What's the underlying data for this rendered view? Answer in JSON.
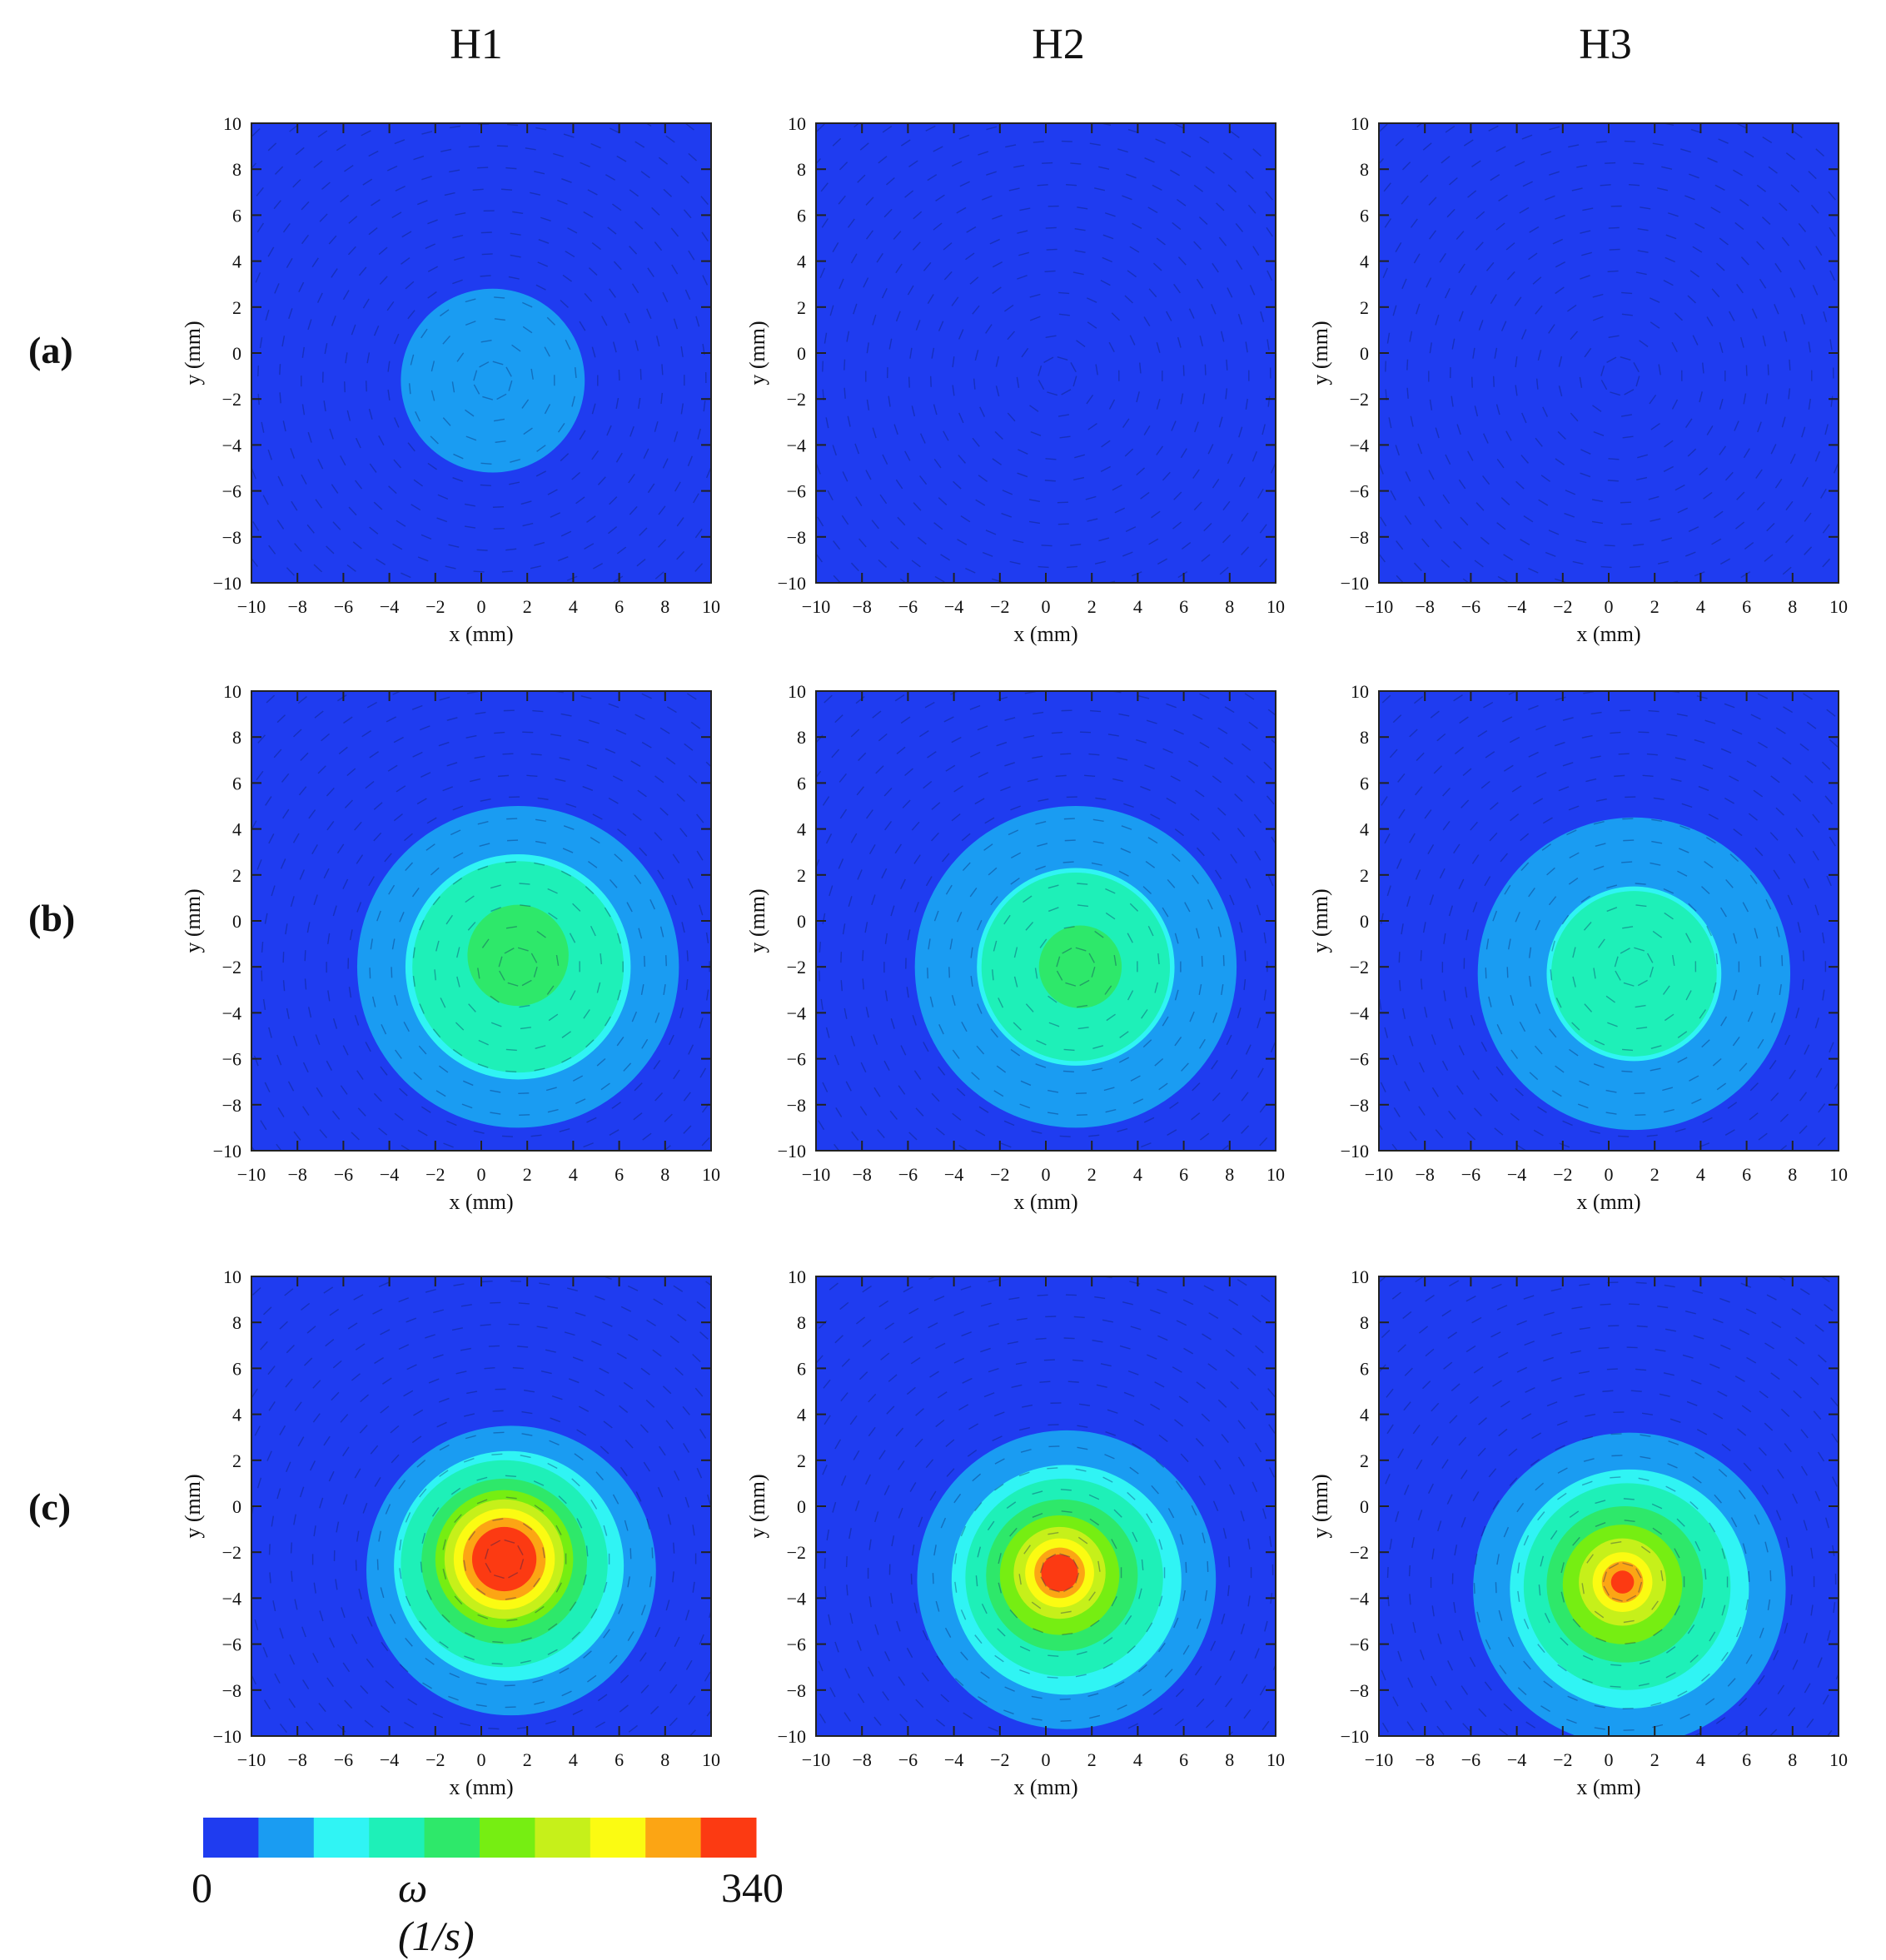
{
  "columns": [
    "H1",
    "H2",
    "H3"
  ],
  "rows": [
    "(a)",
    "(b)",
    "(c)"
  ],
  "colorbar": {
    "min_label": "0",
    "max_label": "340",
    "quantity_label": "ω (1/s)",
    "min": 0,
    "max": 340,
    "colors": [
      "#1f3cf0",
      "#1a9cf2",
      "#30f4f4",
      "#1ef0b8",
      "#2ee86a",
      "#76ee12",
      "#c6f01a",
      "#fbfb12",
      "#fca514",
      "#fc3a12"
    ]
  },
  "chart_data": [
    {
      "type": "heatmap",
      "row": "(a)",
      "column": "H1",
      "xlabel": "x (mm)",
      "ylabel": "y (mm)",
      "xlim": [
        -10,
        10
      ],
      "ylim": [
        -10,
        10
      ],
      "xticks": [
        "−10",
        "−8",
        "−6",
        "−4",
        "−2",
        "0",
        "2",
        "4",
        "6",
        "8",
        "10"
      ],
      "yticks": [
        "−10",
        "−8",
        "−6",
        "−4",
        "−2",
        "0",
        "2",
        "4",
        "6",
        "8",
        "10"
      ],
      "vortex_center": [
        0.5,
        -1.2
      ],
      "contours": [
        {
          "radius": 4.0,
          "level": 1
        }
      ]
    },
    {
      "type": "heatmap",
      "row": "(a)",
      "column": "H2",
      "xlabel": "x (mm)",
      "ylabel": "y (mm)",
      "xlim": [
        -10,
        10
      ],
      "ylim": [
        -10,
        10
      ],
      "xticks": [
        "−10",
        "−8",
        "−6",
        "−4",
        "−2",
        "0",
        "2",
        "4",
        "6",
        "8",
        "10"
      ],
      "yticks": [
        "−10",
        "−8",
        "−6",
        "−4",
        "−2",
        "0",
        "2",
        "4",
        "6",
        "8",
        "10"
      ],
      "vortex_center": [
        0.5,
        -1.0
      ],
      "contours": []
    },
    {
      "type": "heatmap",
      "row": "(a)",
      "column": "H3",
      "xlabel": "x (mm)",
      "ylabel": "y (mm)",
      "xlim": [
        -10,
        10
      ],
      "ylim": [
        -10,
        10
      ],
      "xticks": [
        "−10",
        "−8",
        "−6",
        "−4",
        "−2",
        "0",
        "2",
        "4",
        "6",
        "8",
        "10"
      ],
      "yticks": [
        "−10",
        "−8",
        "−6",
        "−4",
        "−2",
        "0",
        "2",
        "4",
        "6",
        "8",
        "10"
      ],
      "vortex_center": [
        0.5,
        -1.0
      ],
      "contours": []
    },
    {
      "type": "heatmap",
      "row": "(b)",
      "column": "H1",
      "xlabel": "x (mm)",
      "ylabel": "y (mm)",
      "xlim": [
        -10,
        10
      ],
      "ylim": [
        -10,
        10
      ],
      "xticks": [
        "−10",
        "−8",
        "−6",
        "−4",
        "−2",
        "0",
        "2",
        "4",
        "6",
        "8",
        "10"
      ],
      "yticks": [
        "−10",
        "−8",
        "−6",
        "−4",
        "−2",
        "0",
        "2",
        "4",
        "6",
        "8",
        "10"
      ],
      "vortex_center": [
        1.6,
        -2.0
      ],
      "contours": [
        {
          "radius": 7.0,
          "level": 1,
          "cx": 1.6,
          "cy": -2.0
        },
        {
          "radius": 4.9,
          "level": 2,
          "cx": 1.6,
          "cy": -2.0
        },
        {
          "radius": 4.6,
          "level": 3,
          "cx": 1.6,
          "cy": -2.0
        },
        {
          "radius": 2.2,
          "level": 4,
          "cx": 1.6,
          "cy": -1.5
        }
      ]
    },
    {
      "type": "heatmap",
      "row": "(b)",
      "column": "H2",
      "xlabel": "x (mm)",
      "ylabel": "y (mm)",
      "xlim": [
        -10,
        10
      ],
      "ylim": [
        -10,
        10
      ],
      "xticks": [
        "−10",
        "−8",
        "−6",
        "−4",
        "−2",
        "0",
        "2",
        "4",
        "6",
        "8",
        "10"
      ],
      "yticks": [
        "−10",
        "−8",
        "−6",
        "−4",
        "−2",
        "0",
        "2",
        "4",
        "6",
        "8",
        "10"
      ],
      "vortex_center": [
        1.3,
        -2.0
      ],
      "contours": [
        {
          "radius": 7.0,
          "level": 1,
          "cx": 1.3,
          "cy": -2.0
        },
        {
          "radius": 4.3,
          "level": 2,
          "cx": 1.3,
          "cy": -2.0
        },
        {
          "radius": 4.1,
          "level": 3,
          "cx": 1.3,
          "cy": -2.0
        },
        {
          "radius": 1.8,
          "level": 4,
          "cx": 1.5,
          "cy": -2.0
        }
      ]
    },
    {
      "type": "heatmap",
      "row": "(b)",
      "column": "H3",
      "xlabel": "x (mm)",
      "ylabel": "y (mm)",
      "xlim": [
        -10,
        10
      ],
      "ylim": [
        -10,
        10
      ],
      "xticks": [
        "−10",
        "−8",
        "−6",
        "−4",
        "−2",
        "0",
        "2",
        "4",
        "6",
        "8",
        "10"
      ],
      "yticks": [
        "−10",
        "−8",
        "−6",
        "−4",
        "−2",
        "0",
        "2",
        "4",
        "6",
        "8",
        "10"
      ],
      "vortex_center": [
        1.1,
        -2.0
      ],
      "contours": [
        {
          "radius": 6.8,
          "level": 1,
          "cx": 1.1,
          "cy": -2.3
        },
        {
          "radius": 3.8,
          "level": 2,
          "cx": 1.1,
          "cy": -2.3
        },
        {
          "radius": 3.6,
          "level": 3,
          "cx": 1.1,
          "cy": -2.3
        }
      ]
    },
    {
      "type": "heatmap",
      "row": "(c)",
      "column": "H1",
      "xlabel": "x (mm)",
      "ylabel": "y (mm)",
      "xlim": [
        -10,
        10
      ],
      "ylim": [
        -10,
        10
      ],
      "xticks": [
        "−10",
        "−8",
        "−6",
        "−4",
        "−2",
        "0",
        "2",
        "4",
        "6",
        "8",
        "10"
      ],
      "yticks": [
        "−10",
        "−8",
        "−6",
        "−4",
        "−2",
        "0",
        "2",
        "4",
        "6",
        "8",
        "10"
      ],
      "vortex_center": [
        1.0,
        -2.3
      ],
      "contours": [
        {
          "radius": 6.3,
          "level": 1,
          "cx": 1.3,
          "cy": -2.8
        },
        {
          "radius": 5.0,
          "level": 2,
          "cx": 1.2,
          "cy": -2.6
        },
        {
          "radius": 4.5,
          "level": 3,
          "cx": 1.0,
          "cy": -2.5
        },
        {
          "radius": 3.6,
          "level": 4,
          "cx": 1.0,
          "cy": -2.4
        },
        {
          "radius": 3.0,
          "level": 5,
          "cx": 1.0,
          "cy": -2.3
        },
        {
          "radius": 2.6,
          "level": 6,
          "cx": 1.0,
          "cy": -2.3
        },
        {
          "radius": 2.2,
          "level": 7,
          "cx": 1.0,
          "cy": -2.3
        },
        {
          "radius": 1.8,
          "level": 8,
          "cx": 1.0,
          "cy": -2.3
        },
        {
          "radius": 1.4,
          "level": 9,
          "cx": 1.0,
          "cy": -2.3
        }
      ]
    },
    {
      "type": "heatmap",
      "row": "(c)",
      "column": "H2",
      "xlabel": "x (mm)",
      "ylabel": "y (mm)",
      "xlim": [
        -10,
        10
      ],
      "ylim": [
        -10,
        10
      ],
      "xticks": [
        "−10",
        "−8",
        "−6",
        "−4",
        "−2",
        "0",
        "2",
        "4",
        "6",
        "8",
        "10"
      ],
      "yticks": [
        "−10",
        "−8",
        "−6",
        "−4",
        "−2",
        "0",
        "2",
        "4",
        "6",
        "8",
        "10"
      ],
      "vortex_center": [
        0.6,
        -2.9
      ],
      "contours": [
        {
          "radius": 6.5,
          "level": 1,
          "cx": 0.9,
          "cy": -3.2
        },
        {
          "radius": 5.0,
          "level": 2,
          "cx": 0.9,
          "cy": -3.2
        },
        {
          "radius": 4.3,
          "level": 3,
          "cx": 0.8,
          "cy": -3.1
        },
        {
          "radius": 3.3,
          "level": 4,
          "cx": 0.7,
          "cy": -3.0
        },
        {
          "radius": 2.6,
          "level": 5,
          "cx": 0.6,
          "cy": -3.0
        },
        {
          "radius": 2.0,
          "level": 6,
          "cx": 0.6,
          "cy": -2.9
        },
        {
          "radius": 1.5,
          "level": 7,
          "cx": 0.6,
          "cy": -2.9
        },
        {
          "radius": 1.1,
          "level": 8,
          "cx": 0.6,
          "cy": -2.9
        },
        {
          "radius": 0.8,
          "level": 9,
          "cx": 0.6,
          "cy": -2.9
        }
      ]
    },
    {
      "type": "heatmap",
      "row": "(c)",
      "column": "H3",
      "xlabel": "x (mm)",
      "ylabel": "y (mm)",
      "xlim": [
        -10,
        10
      ],
      "ylim": [
        -10,
        10
      ],
      "xticks": [
        "−10",
        "−8",
        "−6",
        "−4",
        "−2",
        "0",
        "2",
        "4",
        "6",
        "8",
        "10"
      ],
      "yticks": [
        "−10",
        "−8",
        "−6",
        "−4",
        "−2",
        "0",
        "2",
        "4",
        "6",
        "8",
        "10"
      ],
      "vortex_center": [
        0.6,
        -3.3
      ],
      "contours": [
        {
          "radius": 6.8,
          "level": 1,
          "cx": 0.9,
          "cy": -3.6
        },
        {
          "radius": 5.2,
          "level": 2,
          "cx": 0.9,
          "cy": -3.6
        },
        {
          "radius": 4.5,
          "level": 3,
          "cx": 0.8,
          "cy": -3.5
        },
        {
          "radius": 3.4,
          "level": 4,
          "cx": 0.7,
          "cy": -3.4
        },
        {
          "radius": 2.6,
          "level": 5,
          "cx": 0.6,
          "cy": -3.4
        },
        {
          "radius": 1.9,
          "level": 6,
          "cx": 0.6,
          "cy": -3.3
        },
        {
          "radius": 1.3,
          "level": 7,
          "cx": 0.6,
          "cy": -3.3
        },
        {
          "radius": 0.9,
          "level": 8,
          "cx": 0.6,
          "cy": -3.3
        },
        {
          "radius": 0.5,
          "level": 9,
          "cx": 0.6,
          "cy": -3.3
        }
      ]
    }
  ]
}
